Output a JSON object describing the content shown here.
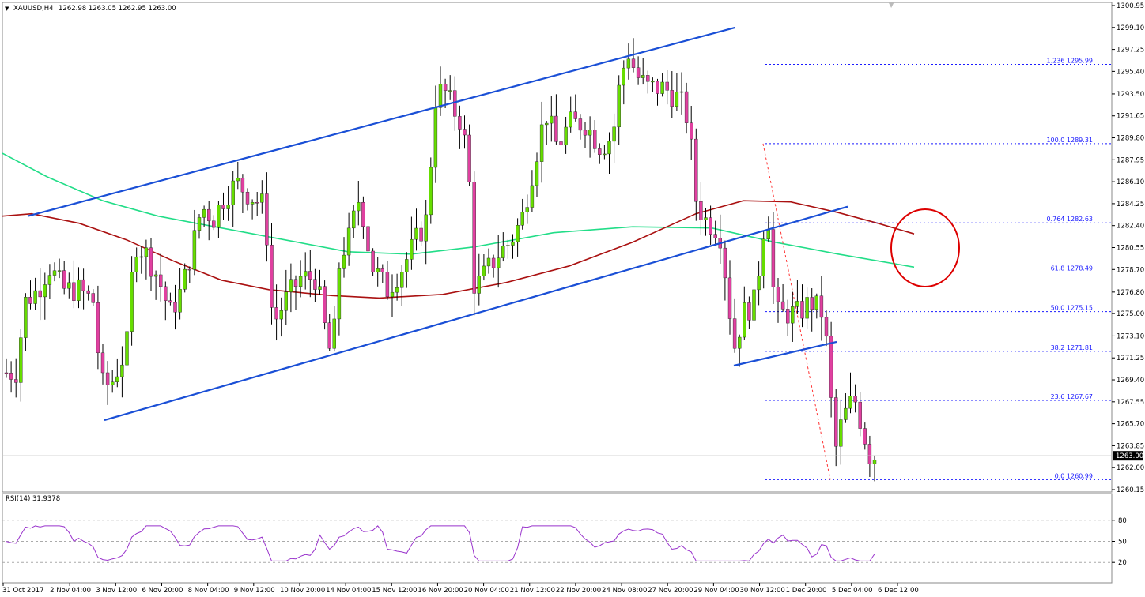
{
  "header": {
    "symbol": "XAUUSD,H4",
    "ohlc": "1262.98 1263.05 1262.95 1263.00"
  },
  "rsi_header": "RSI(14) 31.9378",
  "price_badge": "1263.00",
  "colors": {
    "bull_body": "#66dd00",
    "bear_body": "#e040a0",
    "wick": "#000000",
    "channel": "#1a4fd6",
    "ma_short": "#22dd88",
    "ma_long": "#aa1111",
    "fib": "#1a1aff",
    "fib_trend": "#ff3333",
    "rsi": "#9933cc",
    "circle": "#dd0000"
  },
  "chart_data": {
    "type": "candlestick",
    "y_range": [
      1260.15,
      1300.95
    ],
    "y_ticks": [
      "1300.95",
      "1299.10",
      "1297.25",
      "1295.40",
      "1293.50",
      "1291.65",
      "1289.80",
      "1287.95",
      "1286.10",
      "1284.25",
      "1282.40",
      "1280.55",
      "1278.70",
      "1276.80",
      "1275.00",
      "1273.10",
      "1271.25",
      "1269.40",
      "1267.55",
      "1265.70",
      "1263.85",
      "1262.00",
      "1260.15"
    ],
    "x_ticks": [
      "31 Oct 2017",
      "2 Nov 04:00",
      "3 Nov 12:00",
      "6 Nov 20:00",
      "8 Nov 04:00",
      "9 Nov 12:00",
      "10 Nov 20:00",
      "14 Nov 04:00",
      "15 Nov 12:00",
      "16 Nov 20:00",
      "20 Nov 04:00",
      "21 Nov 12:00",
      "22 Nov 20:00",
      "24 Nov 08:00",
      "27 Nov 20:00",
      "29 Nov 04:00",
      "30 Nov 12:00",
      "1 Dec 20:00",
      "5 Dec 04:00",
      "6 Dec 12:00"
    ],
    "fib_levels": [
      {
        "label": "1.236 1295.99",
        "value": 1295.99
      },
      {
        "label": "100.0 1289.31",
        "value": 1289.31
      },
      {
        "label": "0.764 1282.63",
        "value": 1282.63
      },
      {
        "label": "61.8 1278.49",
        "value": 1278.49
      },
      {
        "label": "50.0 1275.15",
        "value": 1275.15
      },
      {
        "label": "38.2 1271.81",
        "value": 1271.81
      },
      {
        "label": "23.6 1267.67",
        "value": 1267.67
      },
      {
        "label": "0.0 1260.99",
        "value": 1260.99
      }
    ],
    "current_price": 1263.0,
    "rsi": {
      "range": [
        0,
        100
      ],
      "ticks": [
        "80",
        "50",
        "20"
      ],
      "levels": [
        80,
        50,
        20
      ],
      "value": 31.9378
    }
  }
}
